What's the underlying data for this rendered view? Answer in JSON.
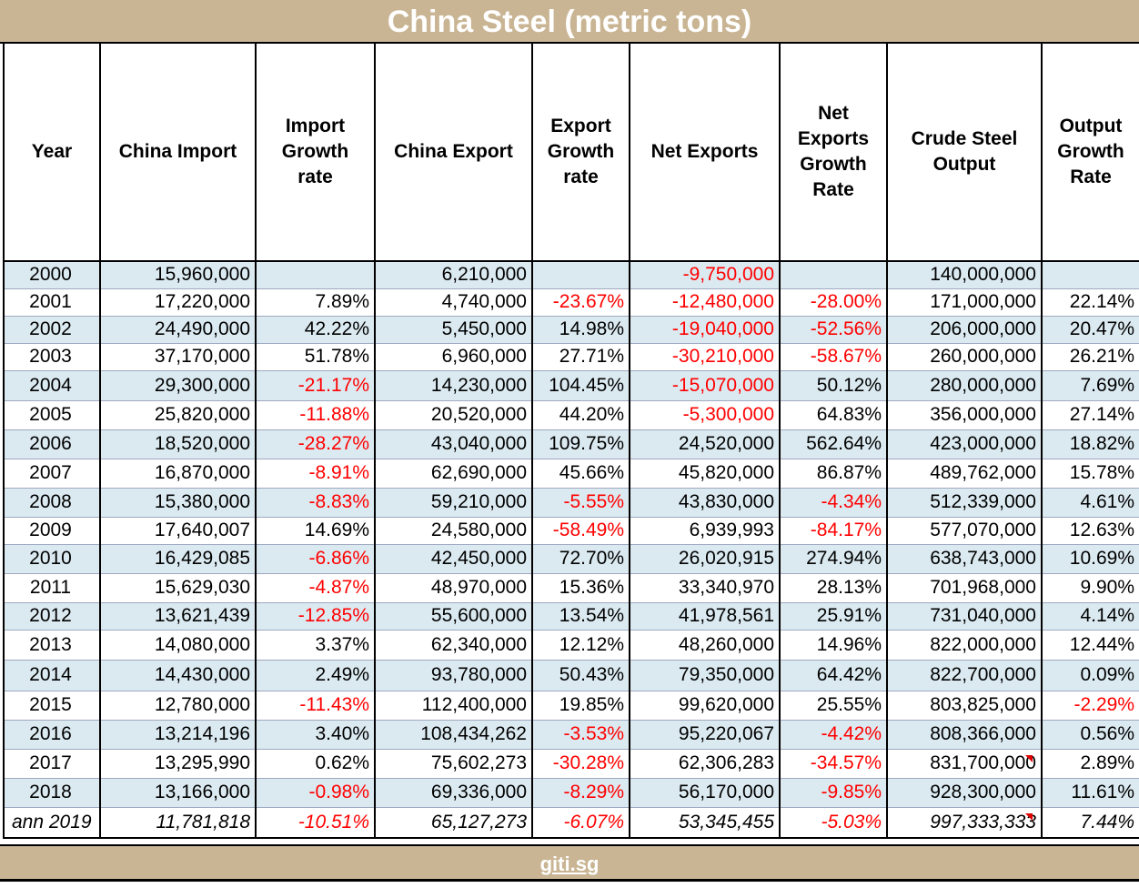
{
  "title": "China Steel (metric tons)",
  "headers": [
    "Year",
    "China Import",
    "Import Growth rate",
    "China Export",
    "Export Growth rate",
    "Net Exports",
    "Net Exports Growth Rate",
    "Crude Steel Output",
    "Output Growth Rate"
  ],
  "rows": [
    {
      "year": "2000",
      "import": "15,960,000",
      "import_growth": "",
      "export": "6,210,000",
      "export_growth": "",
      "net": "-9,750,000",
      "net_growth": "",
      "output": "140,000,000",
      "output_growth": ""
    },
    {
      "year": "2001",
      "import": "17,220,000",
      "import_growth": "7.89%",
      "export": "4,740,000",
      "export_growth": "-23.67%",
      "net": "-12,480,000",
      "net_growth": "-28.00%",
      "output": "171,000,000",
      "output_growth": "22.14%"
    },
    {
      "year": "2002",
      "import": "24,490,000",
      "import_growth": "42.22%",
      "export": "5,450,000",
      "export_growth": "14.98%",
      "net": "-19,040,000",
      "net_growth": "-52.56%",
      "output": "206,000,000",
      "output_growth": "20.47%"
    },
    {
      "year": "2003",
      "import": "37,170,000",
      "import_growth": "51.78%",
      "export": "6,960,000",
      "export_growth": "27.71%",
      "net": "-30,210,000",
      "net_growth": "-58.67%",
      "output": "260,000,000",
      "output_growth": "26.21%"
    },
    {
      "year": "2004",
      "import": "29,300,000",
      "import_growth": "-21.17%",
      "export": "14,230,000",
      "export_growth": "104.45%",
      "net": "-15,070,000",
      "net_growth": "50.12%",
      "output": "280,000,000",
      "output_growth": "7.69%"
    },
    {
      "year": "2005",
      "import": "25,820,000",
      "import_growth": "-11.88%",
      "export": "20,520,000",
      "export_growth": "44.20%",
      "net": "-5,300,000",
      "net_growth": "64.83%",
      "output": "356,000,000",
      "output_growth": "27.14%"
    },
    {
      "year": "2006",
      "import": "18,520,000",
      "import_growth": "-28.27%",
      "export": "43,040,000",
      "export_growth": "109.75%",
      "net": "24,520,000",
      "net_growth": "562.64%",
      "output": "423,000,000",
      "output_growth": "18.82%"
    },
    {
      "year": "2007",
      "import": "16,870,000",
      "import_growth": "-8.91%",
      "export": "62,690,000",
      "export_growth": "45.66%",
      "net": "45,820,000",
      "net_growth": "86.87%",
      "output": "489,762,000",
      "output_growth": "15.78%"
    },
    {
      "year": "2008",
      "import": "15,380,000",
      "import_growth": "-8.83%",
      "export": "59,210,000",
      "export_growth": "-5.55%",
      "net": "43,830,000",
      "net_growth": "-4.34%",
      "output": "512,339,000",
      "output_growth": "4.61%"
    },
    {
      "year": "2009",
      "import": "17,640,007",
      "import_growth": "14.69%",
      "export": "24,580,000",
      "export_growth": "-58.49%",
      "net": "6,939,993",
      "net_growth": "-84.17%",
      "output": "577,070,000",
      "output_growth": "12.63%"
    },
    {
      "year": "2010",
      "import": "16,429,085",
      "import_growth": "-6.86%",
      "export": "42,450,000",
      "export_growth": "72.70%",
      "net": "26,020,915",
      "net_growth": "274.94%",
      "output": "638,743,000",
      "output_growth": "10.69%"
    },
    {
      "year": "2011",
      "import": "15,629,030",
      "import_growth": "-4.87%",
      "export": "48,970,000",
      "export_growth": "15.36%",
      "net": "33,340,970",
      "net_growth": "28.13%",
      "output": "701,968,000",
      "output_growth": "9.90%"
    },
    {
      "year": "2012",
      "import": "13,621,439",
      "import_growth": "-12.85%",
      "export": "55,600,000",
      "export_growth": "13.54%",
      "net": "41,978,561",
      "net_growth": "25.91%",
      "output": "731,040,000",
      "output_growth": "4.14%"
    },
    {
      "year": "2013",
      "import": "14,080,000",
      "import_growth": "3.37%",
      "export": "62,340,000",
      "export_growth": "12.12%",
      "net": "48,260,000",
      "net_growth": "14.96%",
      "output": "822,000,000",
      "output_growth": "12.44%"
    },
    {
      "year": "2014",
      "import": "14,430,000",
      "import_growth": "2.49%",
      "export": "93,780,000",
      "export_growth": "50.43%",
      "net": "79,350,000",
      "net_growth": "64.42%",
      "output": "822,700,000",
      "output_growth": "0.09%"
    },
    {
      "year": "2015",
      "import": "12,780,000",
      "import_growth": "-11.43%",
      "export": "112,400,000",
      "export_growth": "19.85%",
      "net": "99,620,000",
      "net_growth": "25.55%",
      "output": "803,825,000",
      "output_growth": "-2.29%"
    },
    {
      "year": "2016",
      "import": "13,214,196",
      "import_growth": "3.40%",
      "export": "108,434,262",
      "export_growth": "-3.53%",
      "net": "95,220,067",
      "net_growth": "-4.42%",
      "output": "808,366,000",
      "output_growth": "0.56%"
    },
    {
      "year": "2017",
      "import": "13,295,990",
      "import_growth": "0.62%",
      "export": "75,602,273",
      "export_growth": "-30.28%",
      "net": "62,306,283",
      "net_growth": "-34.57%",
      "output": "831,700,000",
      "output_growth": "2.89%"
    },
    {
      "year": "2018",
      "import": "13,166,000",
      "import_growth": "-0.98%",
      "export": "69,336,000",
      "export_growth": "-8.29%",
      "net": "56,170,000",
      "net_growth": "-9.85%",
      "output": "928,300,000",
      "output_growth": "11.61%"
    },
    {
      "year": "ann 2019",
      "import": "11,781,818",
      "import_growth": "-10.51%",
      "export": "65,127,273",
      "export_growth": "-6.07%",
      "net": "53,345,455",
      "net_growth": "-5.03%",
      "output": "997,333,333",
      "output_growth": "7.44%"
    }
  ],
  "footer_link": "giti.sg",
  "colors": {
    "banner": "#c9b593",
    "shaded_row": "#dbeaf1",
    "negative": "#ff0000",
    "comment_marker": "#e00000"
  }
}
